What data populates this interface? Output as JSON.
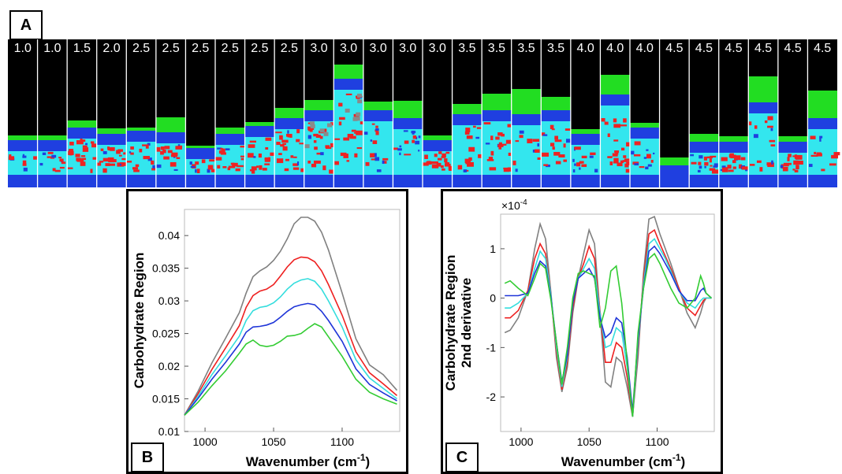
{
  "panels": {
    "a": "A",
    "b": "B",
    "c": "C"
  },
  "strips": {
    "labels": [
      "1.0",
      "1.0",
      "1.5",
      "2.0",
      "2.5",
      "2.5",
      "2.5",
      "2.5",
      "2.5",
      "2.5",
      "3.0",
      "3.0",
      "3.0",
      "3.0",
      "3.0",
      "3.5",
      "3.5",
      "3.5",
      "3.5",
      "4.0",
      "4.0",
      "4.0",
      "4.5",
      "4.5",
      "4.5",
      "4.5",
      "4.5",
      "4.5"
    ],
    "colors": {
      "background": "#000000",
      "top_layer": "#22dd22",
      "blue": "#1f3fe0",
      "cyan": "#33e6ee",
      "red": "#ee2222",
      "gray": "#8a8a8a"
    }
  },
  "chart_data": [
    {
      "type": "line",
      "panel": "B",
      "xlabel": "Wavenumber (cm",
      "xlabel_sup": "-1",
      "xlabel_close": ")",
      "ylabel": "Carbohydrate Region",
      "xlim": [
        985,
        1142
      ],
      "ylim": [
        0.01,
        0.044
      ],
      "xticks": [
        1000,
        1050,
        1100
      ],
      "xtick_labels": [
        "1000",
        "1050",
        "1100"
      ],
      "yticks": [
        0.01,
        0.015,
        0.02,
        0.025,
        0.03,
        0.035,
        0.04
      ],
      "ytick_labels": [
        "0.01",
        "0.015",
        "0.02",
        "0.025",
        "0.03",
        "0.035",
        "0.04"
      ],
      "x": [
        985,
        995,
        1005,
        1015,
        1025,
        1030,
        1035,
        1040,
        1045,
        1050,
        1055,
        1060,
        1065,
        1070,
        1075,
        1080,
        1085,
        1090,
        1100,
        1110,
        1120,
        1130,
        1140
      ],
      "series": [
        {
          "color": "#808080",
          "values": [
            0.0125,
            0.0162,
            0.0205,
            0.0243,
            0.0282,
            0.0312,
            0.0337,
            0.0346,
            0.0352,
            0.0362,
            0.0376,
            0.0395,
            0.0418,
            0.0428,
            0.0428,
            0.0422,
            0.0405,
            0.0378,
            0.0312,
            0.0242,
            0.0202,
            0.0187,
            0.0163
          ]
        },
        {
          "color": "#ee2020",
          "values": [
            0.0125,
            0.0158,
            0.0195,
            0.0228,
            0.0262,
            0.029,
            0.0308,
            0.0315,
            0.0318,
            0.0325,
            0.0338,
            0.0352,
            0.0363,
            0.0367,
            0.0366,
            0.036,
            0.0346,
            0.0325,
            0.0278,
            0.0222,
            0.019,
            0.0173,
            0.0155
          ]
        },
        {
          "color": "#33dddd",
          "values": [
            0.0125,
            0.0154,
            0.0187,
            0.0216,
            0.0246,
            0.027,
            0.0285,
            0.029,
            0.0292,
            0.0297,
            0.0306,
            0.0318,
            0.0327,
            0.0332,
            0.0334,
            0.033,
            0.0318,
            0.03,
            0.026,
            0.021,
            0.0182,
            0.0166,
            0.015
          ]
        },
        {
          "color": "#1f35d8",
          "values": [
            0.0125,
            0.0151,
            0.018,
            0.0206,
            0.0234,
            0.0252,
            0.026,
            0.0261,
            0.0263,
            0.0267,
            0.0275,
            0.0284,
            0.0291,
            0.0294,
            0.0296,
            0.0294,
            0.0284,
            0.027,
            0.0238,
            0.0196,
            0.0172,
            0.0159,
            0.0147
          ]
        },
        {
          "color": "#33cc33",
          "values": [
            0.0125,
            0.0145,
            0.017,
            0.0193,
            0.022,
            0.0234,
            0.024,
            0.0232,
            0.023,
            0.0232,
            0.0238,
            0.0246,
            0.0247,
            0.025,
            0.0258,
            0.0265,
            0.026,
            0.0245,
            0.0215,
            0.018,
            0.016,
            0.015,
            0.0142
          ]
        }
      ]
    },
    {
      "type": "line",
      "panel": "C",
      "xlabel": "Wavenumber (cm",
      "xlabel_sup": "-1",
      "xlabel_close": ")",
      "ylabel": "Carbohydrate Region",
      "ylabel2": "2nd derivative",
      "y_multiplier": "×10",
      "y_multiplier_exp": "-4",
      "xlim": [
        985,
        1142
      ],
      "ylim": [
        -2.7,
        1.7
      ],
      "xticks": [
        1000,
        1050,
        1100
      ],
      "xtick_labels": [
        "1000",
        "1050",
        "1100"
      ],
      "yticks": [
        -2,
        -1,
        0,
        1
      ],
      "ytick_labels": [
        "-2",
        "-1",
        "0",
        "1"
      ],
      "x": [
        988,
        992,
        998,
        1005,
        1010,
        1014,
        1018,
        1022,
        1026,
        1030,
        1034,
        1038,
        1042,
        1046,
        1050,
        1054,
        1058,
        1062,
        1066,
        1070,
        1074,
        1078,
        1082,
        1086,
        1090,
        1094,
        1098,
        1102,
        1106,
        1110,
        1116,
        1122,
        1128,
        1132,
        1134,
        1136,
        1140
      ],
      "series": [
        {
          "color": "#808080",
          "values": [
            -0.7,
            -0.65,
            -0.4,
            0.15,
            1.0,
            1.5,
            1.2,
            0.1,
            -1.2,
            -1.9,
            -1.4,
            -0.3,
            0.4,
            0.9,
            1.38,
            1.1,
            -0.3,
            -1.7,
            -1.8,
            -1.2,
            -1.3,
            -1.8,
            -2.4,
            -1.2,
            0.5,
            1.6,
            1.65,
            1.3,
            1.0,
            0.7,
            0.2,
            -0.3,
            -0.6,
            -0.3,
            -0.1,
            0.0,
            0.0
          ]
        },
        {
          "color": "#ee2020",
          "values": [
            -0.4,
            -0.4,
            -0.25,
            0.15,
            0.8,
            1.1,
            0.9,
            0.05,
            -1.1,
            -1.85,
            -1.3,
            -0.2,
            0.4,
            0.7,
            1.05,
            0.8,
            -0.25,
            -1.3,
            -1.3,
            -0.9,
            -1.0,
            -1.6,
            -2.4,
            -1.0,
            0.4,
            1.3,
            1.38,
            1.1,
            0.85,
            0.6,
            0.2,
            -0.2,
            -0.35,
            -0.15,
            -0.05,
            0.0,
            0.0
          ]
        },
        {
          "color": "#33dddd",
          "values": [
            -0.2,
            -0.2,
            -0.1,
            0.1,
            0.6,
            0.95,
            0.8,
            0.05,
            -1.0,
            -1.8,
            -1.2,
            -0.1,
            0.4,
            0.6,
            0.8,
            0.6,
            -0.3,
            -1.0,
            -0.95,
            -0.6,
            -0.7,
            -1.4,
            -2.4,
            -0.9,
            0.3,
            1.1,
            1.2,
            1.0,
            0.8,
            0.55,
            0.15,
            -0.1,
            -0.2,
            -0.05,
            0.0,
            0.0,
            0.0
          ]
        },
        {
          "color": "#1f35d8",
          "values": [
            0.05,
            0.05,
            0.05,
            0.1,
            0.5,
            0.75,
            0.65,
            0.0,
            -0.9,
            -1.7,
            -1.15,
            -0.1,
            0.4,
            0.5,
            0.6,
            0.4,
            -0.4,
            -0.8,
            -0.7,
            -0.4,
            -0.5,
            -1.2,
            -2.3,
            -0.8,
            0.2,
            0.95,
            1.05,
            0.9,
            0.7,
            0.5,
            0.15,
            -0.05,
            -0.05,
            0.15,
            0.2,
            0.1,
            0.0
          ]
        },
        {
          "color": "#33cc33",
          "values": [
            0.3,
            0.35,
            0.2,
            0.05,
            0.4,
            0.7,
            0.6,
            -0.05,
            -0.9,
            -1.75,
            -1.0,
            0.0,
            0.5,
            0.55,
            0.5,
            0.45,
            -0.6,
            -0.2,
            0.55,
            0.65,
            -0.1,
            -1.3,
            -2.4,
            -0.7,
            0.2,
            0.8,
            0.9,
            0.7,
            0.45,
            0.2,
            -0.1,
            -0.2,
            0.0,
            0.45,
            0.3,
            0.1,
            0.0
          ]
        }
      ]
    }
  ]
}
